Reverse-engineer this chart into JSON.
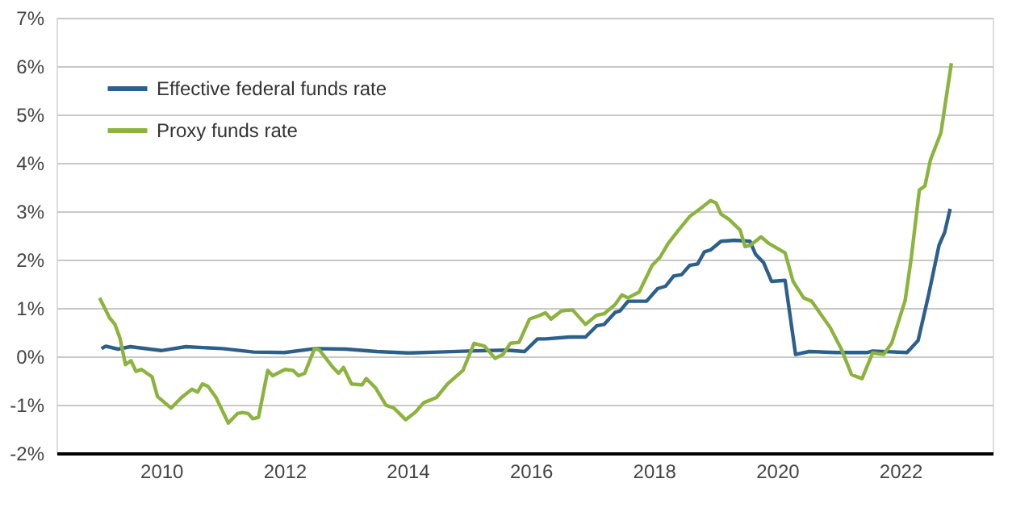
{
  "chart_data": {
    "type": "line",
    "legend": "top left",
    "grid": "y",
    "line_style": "solid",
    "marker": "none",
    "xlim": [
      2008.3,
      2023.5
    ],
    "xticks": [
      2010,
      2012,
      2014,
      2016,
      2018,
      2020,
      2022
    ],
    "ylim": [
      -2,
      7
    ],
    "yticks": [
      {
        "value": -2,
        "label": "-2%"
      },
      {
        "value": -1,
        "label": "-1%"
      },
      {
        "value": 0,
        "label": "0%"
      },
      {
        "value": 1,
        "label": "1%"
      },
      {
        "value": 2,
        "label": "2%"
      },
      {
        "value": 3,
        "label": "3%"
      },
      {
        "value": 4,
        "label": "4%"
      },
      {
        "value": 5,
        "label": "5%"
      },
      {
        "value": 6,
        "label": "6%"
      },
      {
        "value": 7,
        "label": "7%"
      }
    ],
    "series": [
      {
        "name": "Effective federal funds rate",
        "color": "#2d5f8b",
        "x": [
          2009.03,
          2009.1,
          2009.3,
          2009.5,
          2010.0,
          2010.4,
          2011.0,
          2011.5,
          2012.0,
          2012.5,
          2013.0,
          2013.5,
          2014.0,
          2014.5,
          2015.0,
          2015.6,
          2015.9,
          2016.11,
          2016.24,
          2016.63,
          2016.89,
          2017.07,
          2017.19,
          2017.37,
          2017.45,
          2017.58,
          2017.88,
          2018.06,
          2018.19,
          2018.32,
          2018.45,
          2018.58,
          2018.71,
          2018.82,
          2018.92,
          2019.09,
          2019.31,
          2019.56,
          2019.65,
          2019.78,
          2019.91,
          2020.13,
          2020.3,
          2020.52,
          2020.95,
          2021.47,
          2021.55,
          2022.11,
          2022.29,
          2022.46,
          2022.63,
          2022.72,
          2022.81
        ],
        "values": [
          0.16,
          0.21,
          0.15,
          0.2,
          0.12,
          0.2,
          0.16,
          0.09,
          0.08,
          0.16,
          0.15,
          0.1,
          0.07,
          0.09,
          0.11,
          0.13,
          0.1,
          0.36,
          0.36,
          0.4,
          0.4,
          0.63,
          0.66,
          0.91,
          0.94,
          1.14,
          1.14,
          1.4,
          1.45,
          1.66,
          1.69,
          1.88,
          1.91,
          2.16,
          2.2,
          2.38,
          2.4,
          2.38,
          2.11,
          1.94,
          1.55,
          1.57,
          0.04,
          0.1,
          0.08,
          0.08,
          0.11,
          0.08,
          0.33,
          1.27,
          2.3,
          2.56,
          3.05
        ]
      },
      {
        "name": "Proxy funds rate",
        "color": "#8db33f",
        "x": [
          2009.0,
          2009.16,
          2009.25,
          2009.33,
          2009.42,
          2009.51,
          2009.59,
          2009.68,
          2009.85,
          2009.94,
          2010.16,
          2010.33,
          2010.5,
          2010.59,
          2010.67,
          2010.76,
          2010.89,
          2011.09,
          2011.24,
          2011.32,
          2011.41,
          2011.49,
          2011.58,
          2011.73,
          2011.81,
          2012.01,
          2012.14,
          2012.23,
          2012.33,
          2012.49,
          2012.57,
          2012.79,
          2012.88,
          2012.96,
          2013.09,
          2013.26,
          2013.33,
          2013.48,
          2013.65,
          2013.78,
          2013.97,
          2014.13,
          2014.26,
          2014.47,
          2014.65,
          2014.9,
          2015.08,
          2015.25,
          2015.42,
          2015.55,
          2015.67,
          2015.81,
          2015.98,
          2016.11,
          2016.24,
          2016.33,
          2016.5,
          2016.68,
          2016.89,
          2017.07,
          2017.19,
          2017.37,
          2017.48,
          2017.58,
          2017.76,
          2017.97,
          2018.1,
          2018.23,
          2018.4,
          2018.58,
          2018.75,
          2018.92,
          2019.01,
          2019.09,
          2019.22,
          2019.4,
          2019.48,
          2019.57,
          2019.74,
          2019.87,
          2020.13,
          2020.26,
          2020.43,
          2020.56,
          2020.86,
          2021.04,
          2021.21,
          2021.38,
          2021.55,
          2021.73,
          2021.86,
          2022.08,
          2022.18,
          2022.31,
          2022.4,
          2022.49,
          2022.66,
          2022.83
        ],
        "values": [
          1.21,
          0.8,
          0.66,
          0.38,
          -0.17,
          -0.09,
          -0.31,
          -0.27,
          -0.42,
          -0.83,
          -1.07,
          -0.85,
          -0.68,
          -0.74,
          -0.57,
          -0.62,
          -0.85,
          -1.38,
          -1.18,
          -1.16,
          -1.18,
          -1.29,
          -1.26,
          -0.29,
          -0.4,
          -0.27,
          -0.29,
          -0.4,
          -0.35,
          0.16,
          0.13,
          -0.23,
          -0.35,
          -0.23,
          -0.57,
          -0.59,
          -0.46,
          -0.65,
          -1.01,
          -1.07,
          -1.31,
          -1.15,
          -0.96,
          -0.85,
          -0.57,
          -0.29,
          0.27,
          0.21,
          -0.04,
          0.04,
          0.27,
          0.29,
          0.77,
          0.83,
          0.9,
          0.77,
          0.94,
          0.96,
          0.66,
          0.85,
          0.88,
          1.07,
          1.27,
          1.21,
          1.33,
          1.88,
          2.05,
          2.33,
          2.61,
          2.89,
          3.05,
          3.22,
          3.17,
          2.94,
          2.83,
          2.61,
          2.27,
          2.3,
          2.47,
          2.33,
          2.14,
          1.55,
          1.21,
          1.14,
          0.6,
          0.16,
          -0.38,
          -0.46,
          0.07,
          0.04,
          0.27,
          1.16,
          2.05,
          3.44,
          3.52,
          4.06,
          4.62,
          6.06
        ]
      }
    ]
  }
}
